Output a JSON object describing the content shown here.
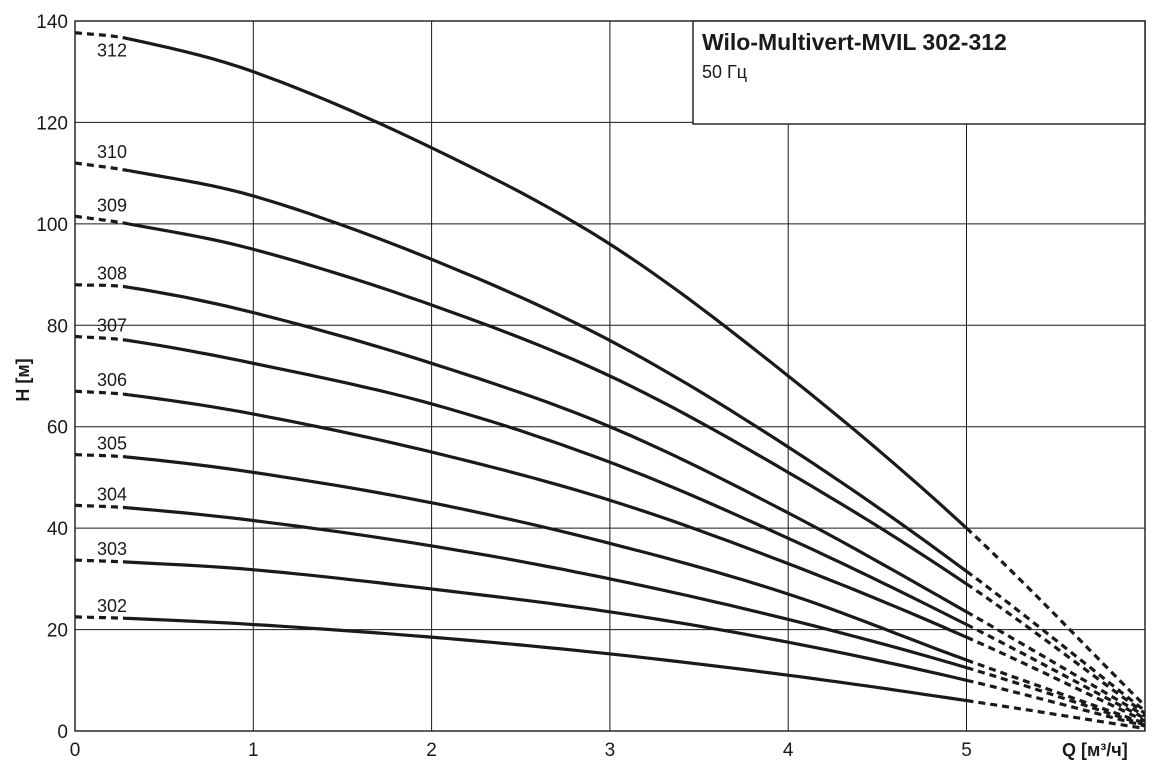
{
  "chart_data": {
    "type": "line",
    "title": "Wilo-Multivert-MVIL 302-312",
    "subtitle": "50 Гц",
    "xlabel": "Q [м³/ч]",
    "ylabel": "H [м]",
    "xlim": [
      0,
      6
    ],
    "ylim": [
      0,
      140
    ],
    "xticks": [
      0,
      1,
      2,
      3,
      4,
      5
    ],
    "yticks": [
      0,
      20,
      40,
      60,
      80,
      100,
      120,
      140
    ],
    "grid": true,
    "solid_range": [
      0.3,
      5.0
    ],
    "series": [
      {
        "name": "312",
        "x": [
          0,
          0.3,
          1,
          2,
          3,
          4,
          5,
          6
        ],
        "y": [
          137.7,
          136.5,
          130,
          115,
          96,
          70,
          40,
          5
        ]
      },
      {
        "name": "310",
        "x": [
          0,
          0.3,
          1,
          2,
          3,
          4,
          5,
          6
        ],
        "y": [
          112,
          110.5,
          105.5,
          93,
          77,
          56,
          31.5,
          4
        ]
      },
      {
        "name": "309",
        "x": [
          0,
          0.3,
          1,
          2,
          3,
          4,
          5,
          6
        ],
        "y": [
          101.5,
          100,
          95,
          84,
          70,
          51,
          29,
          3.5
        ]
      },
      {
        "name": "308",
        "x": [
          0,
          0.3,
          1,
          2,
          3,
          4,
          5,
          6
        ],
        "y": [
          88,
          87.5,
          82.5,
          72.5,
          60,
          43,
          23.5,
          3
        ]
      },
      {
        "name": "307",
        "x": [
          0,
          0.3,
          1,
          2,
          3,
          4,
          5,
          6
        ],
        "y": [
          77.8,
          77,
          72.5,
          64.5,
          53,
          38,
          21,
          2.5
        ]
      },
      {
        "name": "306",
        "x": [
          0,
          0.3,
          1,
          2,
          3,
          4,
          5,
          6
        ],
        "y": [
          67,
          66.3,
          62.5,
          55,
          45.5,
          33,
          18.5,
          2
        ]
      },
      {
        "name": "305",
        "x": [
          0,
          0.3,
          1,
          2,
          3,
          4,
          5,
          6
        ],
        "y": [
          54.5,
          54,
          51,
          45,
          37,
          27,
          14,
          1.5
        ]
      },
      {
        "name": "304",
        "x": [
          0,
          0.3,
          1,
          2,
          3,
          4,
          5,
          6
        ],
        "y": [
          44.5,
          44,
          41.5,
          36.5,
          30,
          22,
          12.5,
          1.2
        ]
      },
      {
        "name": "303",
        "x": [
          0,
          0.3,
          1,
          2,
          3,
          4,
          5,
          6
        ],
        "y": [
          33.7,
          33.3,
          31.8,
          28,
          23.5,
          17.5,
          10,
          1
        ]
      },
      {
        "name": "302",
        "x": [
          0,
          0.3,
          1,
          2,
          3,
          4,
          5,
          6
        ],
        "y": [
          22.5,
          22.2,
          21,
          18.5,
          15.2,
          11,
          6,
          0.5
        ]
      }
    ]
  },
  "colors": {
    "curve": "#1a1a1a",
    "grid": "#1a1a1a",
    "background": "#ffffff"
  }
}
